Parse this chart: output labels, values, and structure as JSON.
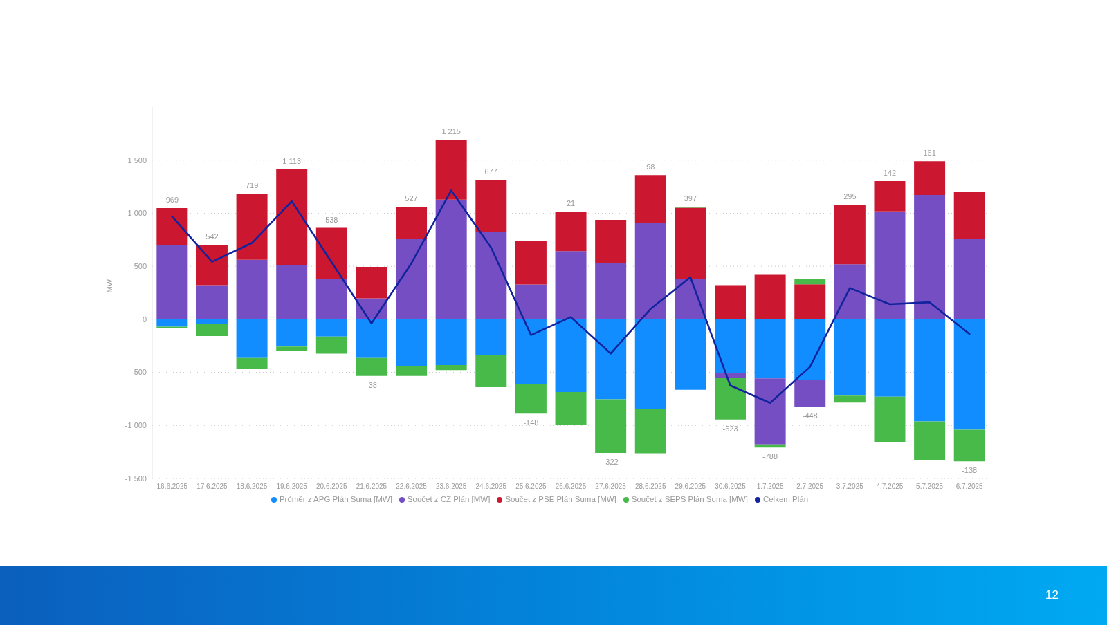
{
  "chart_data": {
    "type": "bar",
    "stacked": true,
    "ylabel": "MW",
    "categories": [
      "16.6.2025",
      "17.6.2025",
      "18.6.2025",
      "19.6.2025",
      "20.6.2025",
      "21.6.2025",
      "22.6.2025",
      "23.6.2025",
      "24.6.2025",
      "25.6.2025",
      "26.6.2025",
      "27.6.2025",
      "28.6.2025",
      "29.6.2025",
      "30.6.2025",
      "1.7.2025",
      "2.7.2025",
      "3.7.2025",
      "4.7.2025",
      "5.7.2025",
      "6.7.2025"
    ],
    "series": [
      {
        "name": "Průměr z APG Plán Suma [MW]",
        "color": "#118dff",
        "values": [
          -70,
          -43,
          -364,
          -256,
          -162,
          -364,
          -440,
          -431,
          -335,
          -611,
          -685,
          -753,
          -843,
          -664,
          -510,
          -557,
          -575,
          -719,
          -730,
          -962,
          -1040
        ]
      },
      {
        "name": "Součet z CZ Plán [MW]",
        "color": "#744ec2",
        "values": [
          697,
          322,
          562,
          512,
          378,
          198,
          760,
          1128,
          822,
          328,
          643,
          528,
          906,
          378,
          -45,
          -622,
          -250,
          519,
          1018,
          1173,
          755
        ]
      },
      {
        "name": "Součet z PSE Plán Suma [MW]",
        "color": "#cb172f",
        "values": [
          351,
          378,
          624,
          902,
          484,
          297,
          301,
          566,
          494,
          413,
          371,
          409,
          454,
          674,
          321,
          420,
          330,
          560,
          285,
          317,
          445
        ]
      },
      {
        "name": "Součet z SEPS Plán Suma [MW]",
        "color": "#47ba4a",
        "values": [
          -9,
          -115,
          -103,
          -45,
          -162,
          -169,
          -94,
          -48,
          -304,
          -278,
          -308,
          -506,
          -419,
          9,
          -389,
          -29,
          47,
          -65,
          -431,
          -367,
          -298
        ]
      },
      {
        "name": "Celkem Plán",
        "type": "line",
        "color": "#12239e",
        "values": [
          969,
          542,
          719,
          1113,
          538,
          -38,
          527,
          1215,
          677,
          -148,
          21,
          -322,
          98,
          397,
          -623,
          -788,
          -448,
          295,
          142,
          161,
          -138
        ]
      }
    ],
    "totals": [
      "969",
      "542",
      "719",
      "1 113",
      "538",
      "-38",
      "527",
      "1 215",
      "677",
      "-148",
      "21",
      "-322",
      "98",
      "397",
      "-623",
      "-788",
      "-448",
      "295",
      "142",
      "161",
      "-138"
    ],
    "ylim": [
      -1500,
      2000
    ],
    "yticks": [
      {
        "value": -1500,
        "label": "-1 500"
      },
      {
        "value": -1000,
        "label": "-1 000"
      },
      -500,
      0,
      500,
      {
        "value": 1000,
        "label": "1 000"
      },
      {
        "value": 1500,
        "label": "1 500"
      }
    ],
    "grid": "y",
    "legend": "bottom",
    "marker": "none",
    "line_style": "solid",
    "annotations": [
      "12"
    ]
  }
}
